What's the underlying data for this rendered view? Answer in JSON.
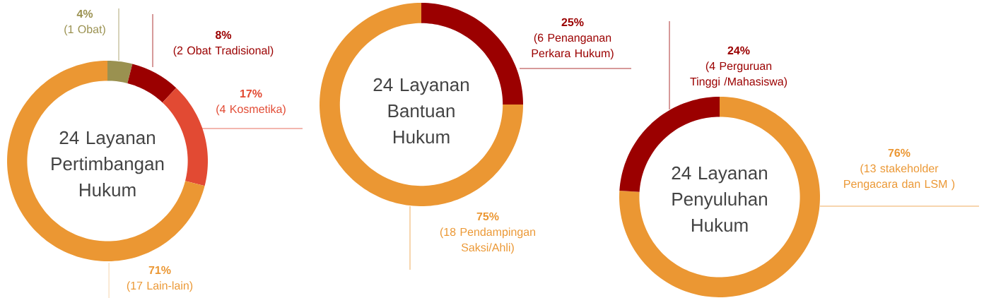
{
  "chart_data": [
    {
      "type": "donut",
      "title": "24 Layanan Pertimbangan Hukum",
      "categories": [
        "(1 Obat)",
        "(2 Obat Tradisional)",
        "(4 Kosmetika)",
        "(17 Lain-lain)"
      ],
      "values": [
        4,
        8,
        17,
        71
      ],
      "value_labels": [
        "4%",
        "8%",
        "17%",
        "71%"
      ],
      "colors": [
        "#9a9150",
        "#9b0000",
        "#e24a33",
        "#eb9733"
      ]
    },
    {
      "type": "donut",
      "title": "24 Layanan Bantuan Hukum",
      "categories": [
        "(6 Penanganan Perkara Hukum)",
        "(18 Pendampingan Saksi/Ahli)"
      ],
      "values": [
        25,
        75
      ],
      "value_labels": [
        "25%",
        "75%"
      ],
      "colors": [
        "#9b0000",
        "#eb9733"
      ]
    },
    {
      "type": "donut",
      "title": "24 Layanan Penyuluhan Hukum",
      "categories": [
        "(13 stakeholder Pengacara dan LSM )",
        "(4 Perguruan Tinggi /Mahasiswa)"
      ],
      "values": [
        76,
        24
      ],
      "value_labels": [
        "76%",
        "24%"
      ],
      "colors": [
        "#eb9733",
        "#9b0000"
      ]
    }
  ]
}
